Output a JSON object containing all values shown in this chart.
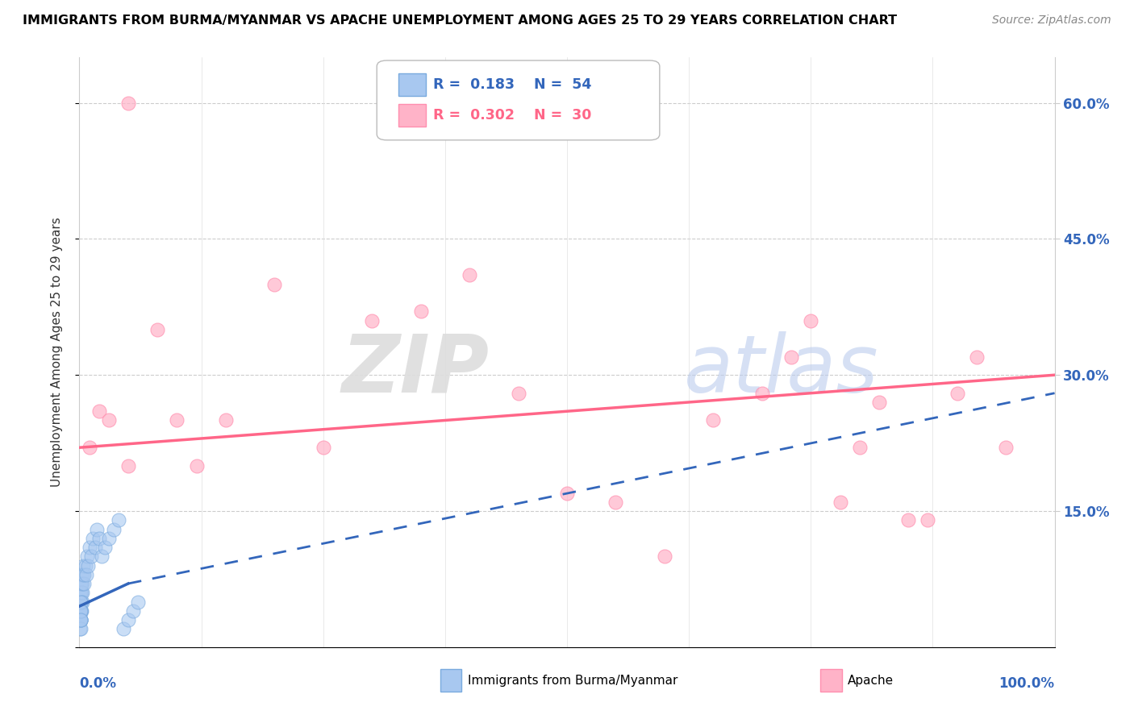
{
  "title": "IMMIGRANTS FROM BURMA/MYANMAR VS APACHE UNEMPLOYMENT AMONG AGES 25 TO 29 YEARS CORRELATION CHART",
  "source": "Source: ZipAtlas.com",
  "ylabel": "Unemployment Among Ages 25 to 29 years",
  "xlim": [
    0,
    100
  ],
  "ylim": [
    0,
    65
  ],
  "yticks": [
    0,
    15,
    30,
    45,
    60
  ],
  "ytick_labels": [
    "0.0%",
    "15.0%",
    "30.0%",
    "45.0%",
    "60.0%"
  ],
  "legend1_r": "0.183",
  "legend1_n": "54",
  "legend2_r": "0.302",
  "legend2_n": "30",
  "blue_color": "#A8C8F0",
  "blue_edge_color": "#7AAADE",
  "pink_color": "#FFB3C8",
  "pink_edge_color": "#FF8FAF",
  "blue_line_color": "#3366BB",
  "pink_line_color": "#FF6688",
  "blue_scatter_x": [
    0.05,
    0.06,
    0.07,
    0.08,
    0.09,
    0.1,
    0.11,
    0.12,
    0.13,
    0.14,
    0.15,
    0.16,
    0.17,
    0.18,
    0.19,
    0.2,
    0.22,
    0.24,
    0.26,
    0.28,
    0.3,
    0.35,
    0.4,
    0.45,
    0.5,
    0.6,
    0.7,
    0.8,
    0.9,
    1.0,
    1.2,
    1.4,
    1.6,
    1.8,
    2.0,
    2.3,
    2.6,
    3.0,
    3.5,
    4.0,
    4.5,
    5.0,
    5.5,
    6.0,
    0.08,
    0.09,
    0.1,
    0.11,
    0.12,
    0.13,
    0.14,
    0.15,
    0.16,
    0.17
  ],
  "blue_scatter_y": [
    5,
    4,
    3,
    6,
    4,
    7,
    5,
    4,
    6,
    3,
    5,
    7,
    6,
    5,
    4,
    6,
    7,
    8,
    6,
    5,
    7,
    8,
    9,
    7,
    8,
    9,
    8,
    10,
    9,
    11,
    10,
    12,
    11,
    13,
    12,
    10,
    11,
    12,
    13,
    14,
    2,
    3,
    4,
    5,
    2,
    3,
    4,
    3,
    2,
    4,
    3,
    5,
    4,
    3
  ],
  "pink_scatter_x": [
    1.0,
    2.0,
    3.0,
    5.0,
    8.0,
    10.0,
    12.0,
    15.0,
    20.0,
    25.0,
    30.0,
    35.0,
    40.0,
    45.0,
    50.0,
    55.0,
    60.0,
    65.0,
    70.0,
    73.0,
    75.0,
    78.0,
    80.0,
    82.0,
    85.0,
    87.0,
    90.0,
    92.0,
    95.0,
    5.0
  ],
  "pink_scatter_y": [
    22,
    26,
    25,
    20,
    35,
    25,
    20,
    25,
    40,
    22,
    36,
    37,
    41,
    28,
    17,
    16,
    10,
    25,
    28,
    32,
    36,
    16,
    22,
    27,
    14,
    14,
    28,
    32,
    22,
    60
  ],
  "blue_line_start_x": 0.0,
  "blue_line_start_y": 4.5,
  "blue_solid_end_x": 5.0,
  "blue_solid_end_y": 7.0,
  "blue_dash_end_x": 100.0,
  "blue_dash_end_y": 28.0,
  "pink_line_start_x": 0.0,
  "pink_line_start_y": 22.0,
  "pink_line_end_x": 100.0,
  "pink_line_end_y": 30.0
}
